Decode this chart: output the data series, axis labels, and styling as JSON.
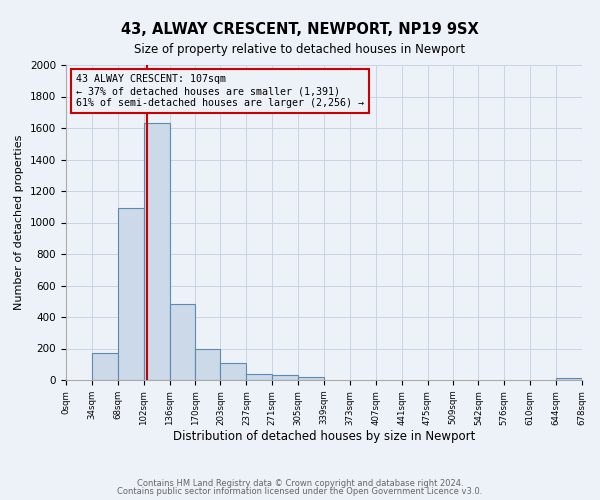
{
  "title": "43, ALWAY CRESCENT, NEWPORT, NP19 9SX",
  "subtitle": "Size of property relative to detached houses in Newport",
  "xlabel": "Distribution of detached houses by size in Newport",
  "ylabel": "Number of detached properties",
  "bar_color": "#ccd9e8",
  "bar_edge_color": "#5b8ab5",
  "grid_color": "#c8d4e4",
  "background_color": "#edf2f8",
  "annotation_box_edge": "#cc0000",
  "annotation_line_color": "#cc0000",
  "annotation_text_line1": "43 ALWAY CRESCENT: 107sqm",
  "annotation_text_line2": "← 37% of detached houses are smaller (1,391)",
  "annotation_text_line3": "61% of semi-detached houses are larger (2,256) →",
  "property_size_sqm": 107,
  "bin_edges": [
    0,
    34,
    68,
    102,
    136,
    170,
    203,
    237,
    271,
    305,
    339,
    373,
    407,
    441,
    475,
    509,
    542,
    576,
    610,
    644,
    678
  ],
  "bin_counts": [
    0,
    170,
    1090,
    1630,
    480,
    200,
    105,
    40,
    30,
    20,
    0,
    0,
    0,
    0,
    0,
    0,
    0,
    0,
    0,
    15
  ],
  "ylim": [
    0,
    2000
  ],
  "yticks": [
    0,
    200,
    400,
    600,
    800,
    1000,
    1200,
    1400,
    1600,
    1800,
    2000
  ],
  "tick_labels": [
    "0sqm",
    "34sqm",
    "68sqm",
    "102sqm",
    "136sqm",
    "170sqm",
    "203sqm",
    "237sqm",
    "271sqm",
    "305sqm",
    "339sqm",
    "373sqm",
    "407sqm",
    "441sqm",
    "475sqm",
    "509sqm",
    "542sqm",
    "576sqm",
    "610sqm",
    "644sqm",
    "678sqm"
  ],
  "footer_line1": "Contains HM Land Registry data © Crown copyright and database right 2024.",
  "footer_line2": "Contains public sector information licensed under the Open Government Licence v3.0."
}
